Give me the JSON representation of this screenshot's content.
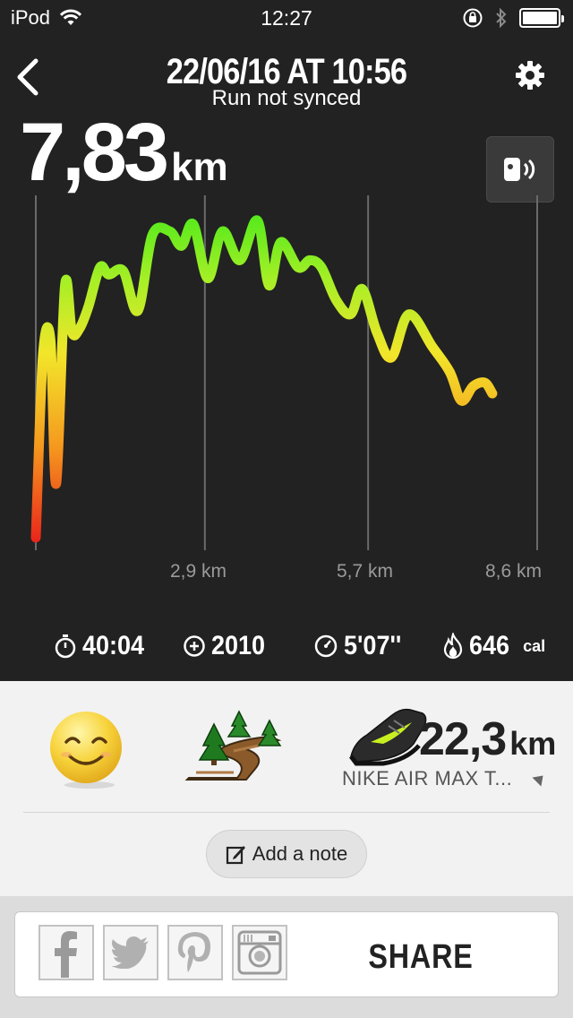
{
  "status_bar": {
    "carrier": "iPod",
    "time": "12:27"
  },
  "header": {
    "title": "22/06/16 AT 10:56",
    "subtitle": "Run not synced"
  },
  "summary": {
    "distance": "7,83",
    "distance_unit": "km"
  },
  "chart_data": {
    "type": "line",
    "x_unit": "km",
    "x_ticks": [
      "2,9 km",
      "5,7 km",
      "8,6 km"
    ],
    "x": [
      0.0,
      0.12,
      0.25,
      0.35,
      0.5,
      0.62,
      0.75,
      0.9,
      1.1,
      1.25,
      1.5,
      1.75,
      2.0,
      2.3,
      2.5,
      2.7,
      2.95,
      3.2,
      3.5,
      3.8,
      4.0,
      4.2,
      4.5,
      4.7,
      4.9,
      5.15,
      5.4,
      5.6,
      5.85,
      6.1,
      6.4,
      6.8,
      7.1,
      7.3,
      7.5,
      7.7,
      7.83
    ],
    "values": [
      0.05,
      0.55,
      0.6,
      0.2,
      0.75,
      0.62,
      0.63,
      0.69,
      0.8,
      0.78,
      0.79,
      0.68,
      0.89,
      0.9,
      0.86,
      0.92,
      0.77,
      0.9,
      0.82,
      0.93,
      0.75,
      0.87,
      0.8,
      0.82,
      0.8,
      0.71,
      0.67,
      0.74,
      0.62,
      0.55,
      0.67,
      0.58,
      0.51,
      0.43,
      0.47,
      0.48,
      0.45
    ],
    "y_meaning": "relative pace (color: red slow → green fast)",
    "grid": true,
    "legend": "none"
  },
  "stats": {
    "duration": "40:04",
    "fuel": "2010",
    "pace": "5'07''",
    "calories": "646",
    "calories_unit": "cal"
  },
  "details": {
    "feeling_icon": "smiley-icon",
    "terrain_icon": "trail-terrain-icon",
    "shoe_distance": "22,3",
    "shoe_distance_unit": "km",
    "shoe_name": "NIKE AIR MAX T..."
  },
  "note_button": {
    "label": "Add a note"
  },
  "share": {
    "label": "SHARE"
  },
  "colors": {
    "dark_bg": "#222222",
    "light_bg": "#f2f2f2",
    "accent_green": "#a8e63b"
  }
}
